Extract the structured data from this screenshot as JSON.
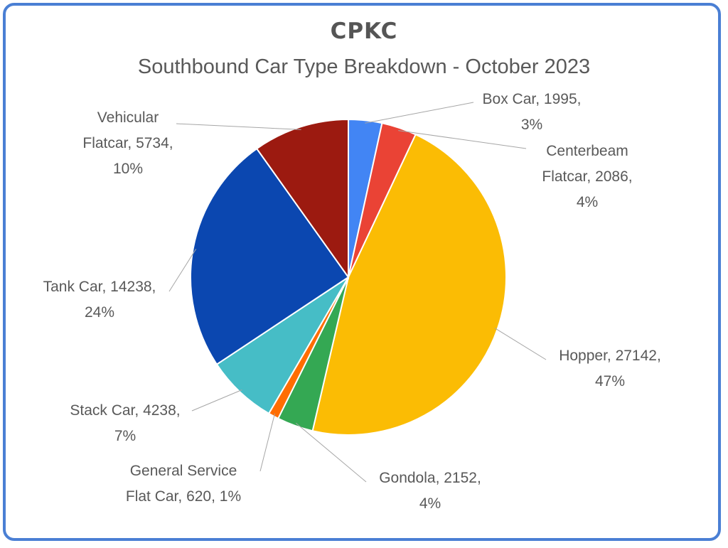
{
  "header": {
    "brand": "CPKC",
    "title": "Southbound Car Type Breakdown - October 2023"
  },
  "chart_data": {
    "type": "pie",
    "title": "Southbound Car Type Breakdown - October 2023",
    "legend": "none",
    "slices": [
      {
        "name": "Box Car",
        "value": 1995,
        "percent": "3%",
        "color": "#4285f4",
        "label_lines": [
          "Box Car, 1995,",
          "3%"
        ]
      },
      {
        "name": "Centerbeam Flatcar",
        "value": 2086,
        "percent": "4%",
        "color": "#ea4335",
        "label_lines": [
          "Centerbeam",
          "Flatcar, 2086,",
          "4%"
        ]
      },
      {
        "name": "Hopper",
        "value": 27142,
        "percent": "47%",
        "color": "#fbbc04",
        "label_lines": [
          "Hopper, 27142,",
          "47%"
        ]
      },
      {
        "name": "Gondola",
        "value": 2152,
        "percent": "4%",
        "color": "#34a853",
        "label_lines": [
          "Gondola, 2152,",
          "4%"
        ]
      },
      {
        "name": "General Service Flat Car",
        "value": 620,
        "percent": "1%",
        "color": "#ff6d01",
        "label_lines": [
          "General Service",
          "Flat Car, 620, 1%"
        ]
      },
      {
        "name": "Stack Car",
        "value": 4238,
        "percent": "7%",
        "color": "#46bdc6",
        "label_lines": [
          "Stack Car, 4238,",
          "7%"
        ]
      },
      {
        "name": "Tank Car",
        "value": 14238,
        "percent": "24%",
        "color": "#0b47b0",
        "label_lines": [
          "Tank Car, 14238,",
          "24%"
        ]
      },
      {
        "name": "Vehicular Flatcar",
        "value": 5734,
        "percent": "10%",
        "color": "#9c1a10",
        "label_lines": [
          "Vehicular",
          "Flatcar, 5734,",
          "10%"
        ]
      }
    ]
  }
}
